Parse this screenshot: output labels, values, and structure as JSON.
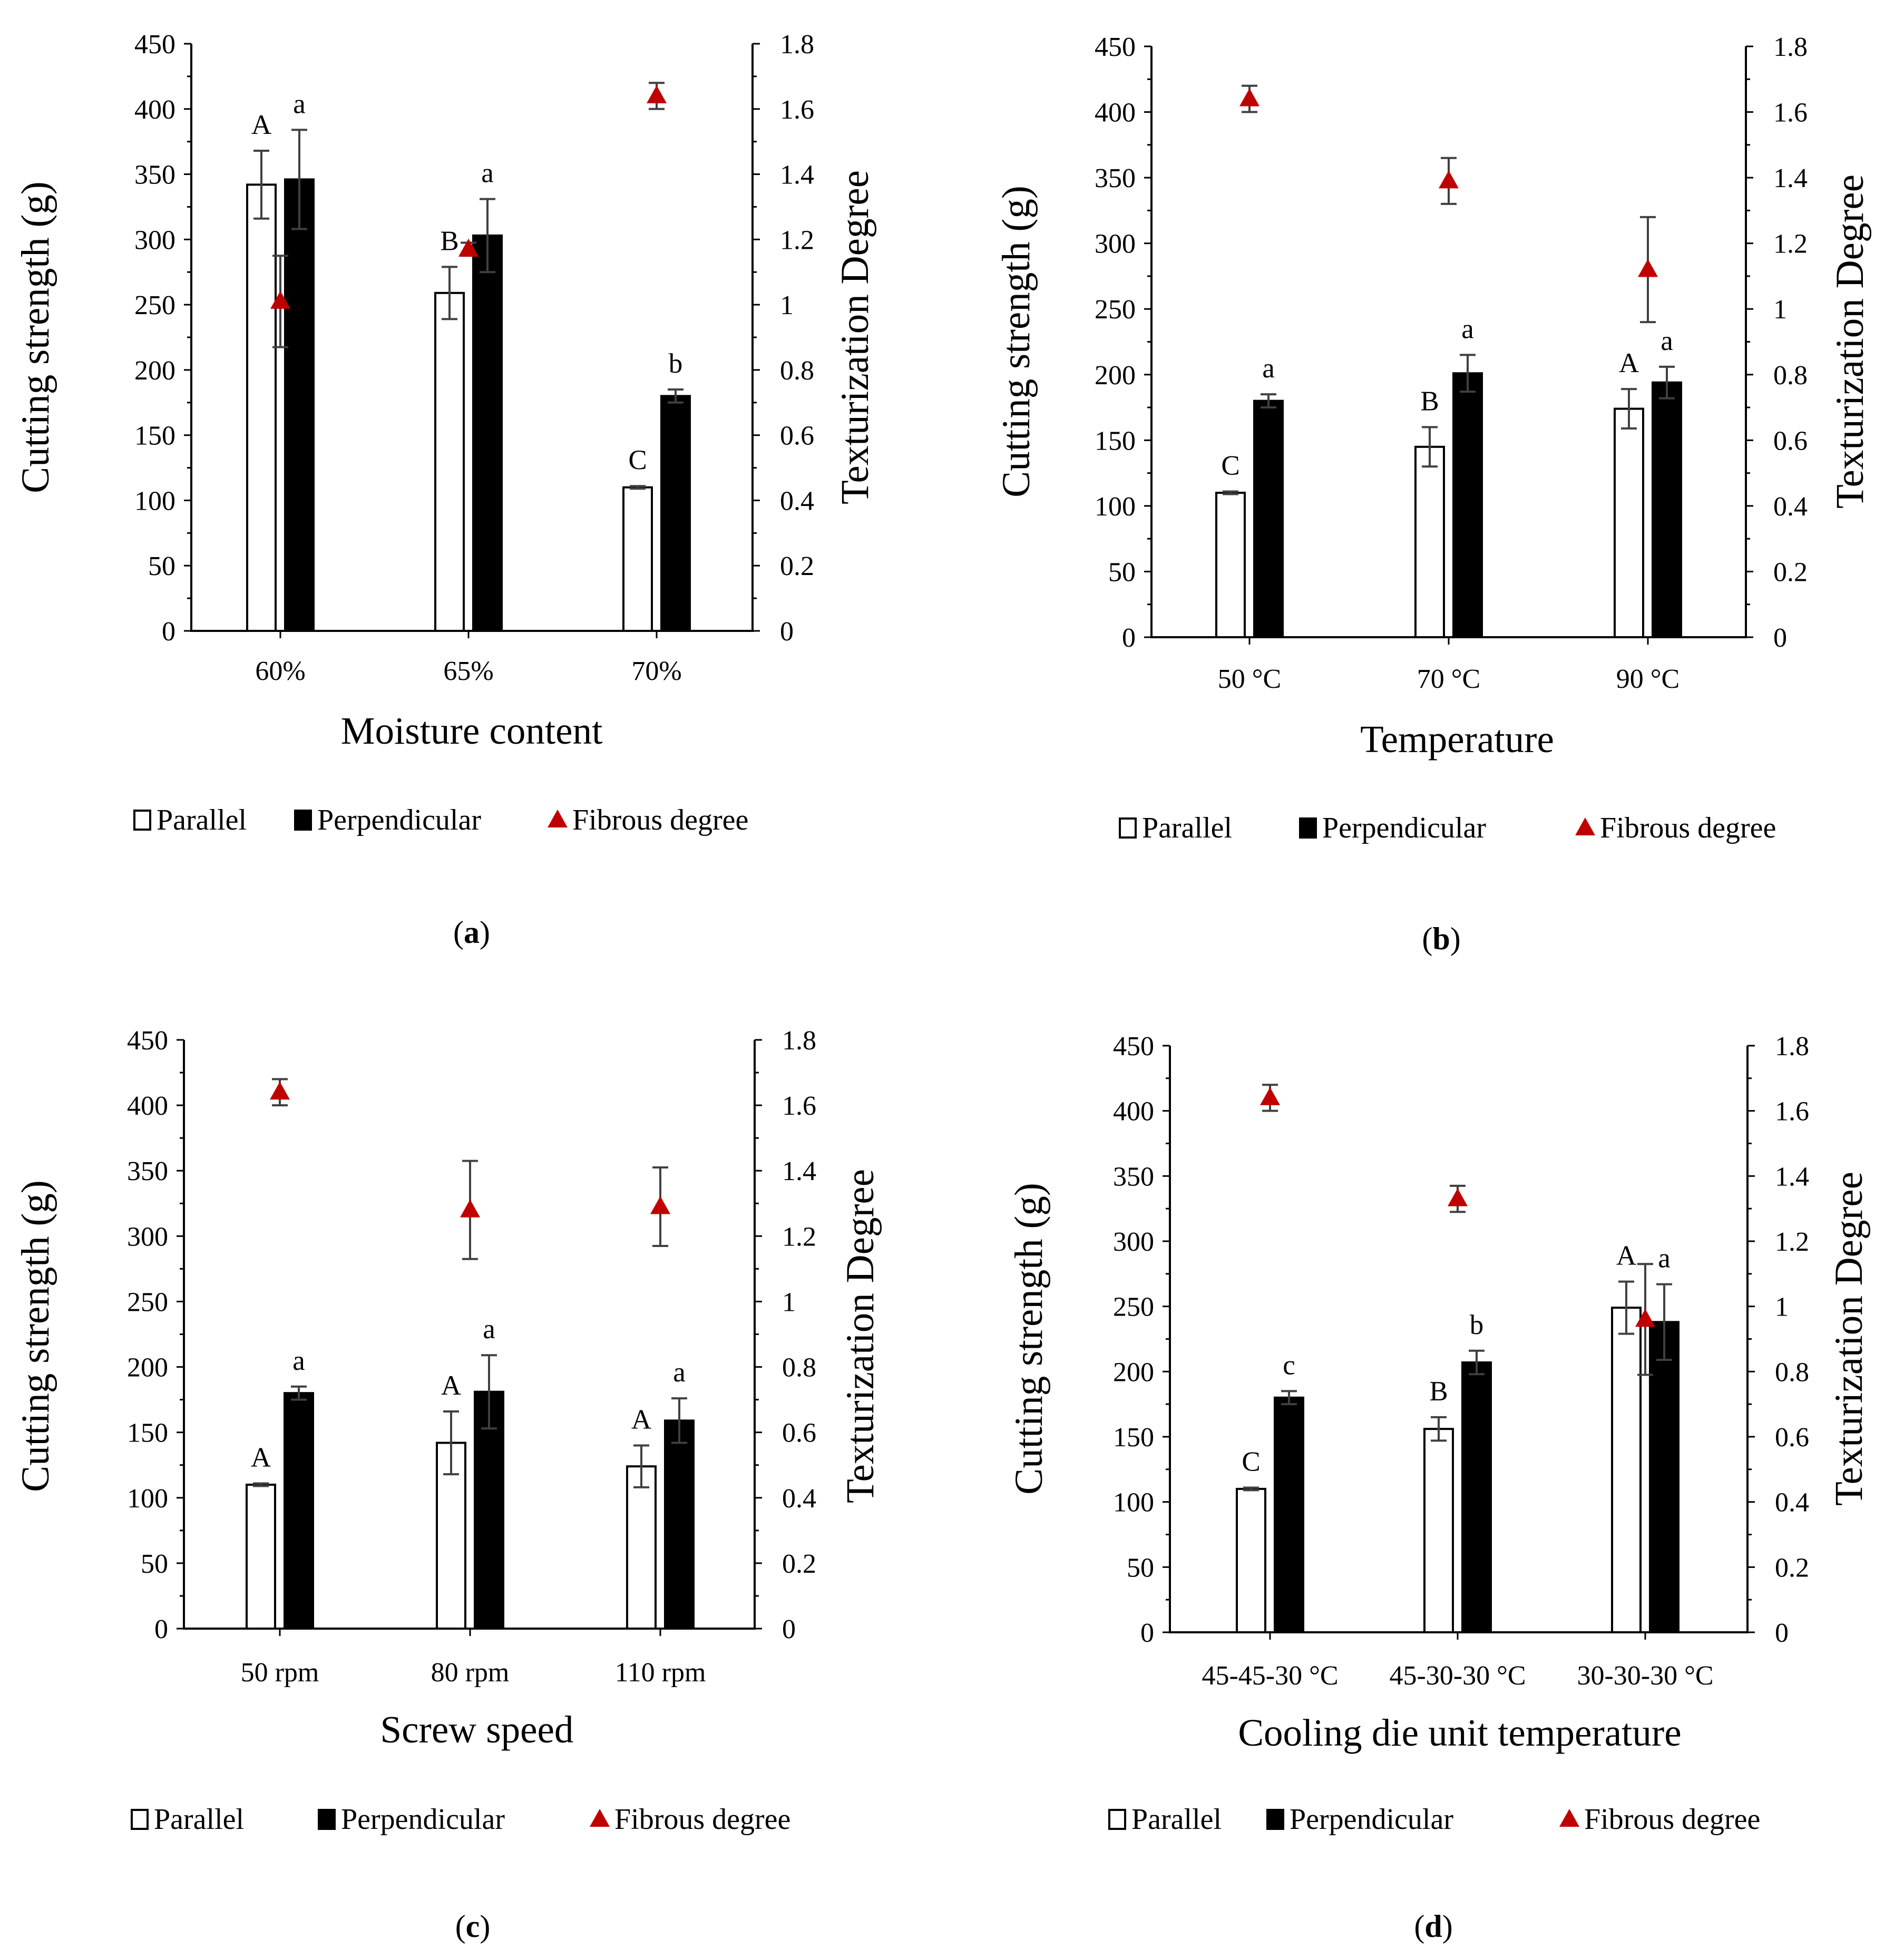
{
  "colors": {
    "parallel_fill": "#ffffff",
    "perpendicular_fill": "#000000",
    "fibrous": "#c00000",
    "axis": "#000000",
    "errorbar": "#404040"
  },
  "legend": {
    "parallel": "Parallel",
    "perpendicular": "Perpendicular",
    "fibrous": "Fibrous degree"
  },
  "chart_data": [
    {
      "panel": "(a)",
      "panel_letter": "a",
      "type": "bar",
      "xlabel": "Moisture content",
      "ylabel": "Cutting strength (g)",
      "y2label": "Texturization Degree",
      "ylim": [
        0,
        450
      ],
      "y2lim": [
        0,
        1.8
      ],
      "yticks": [
        "0",
        "50",
        "100",
        "150",
        "200",
        "250",
        "300",
        "350",
        "400",
        "450"
      ],
      "y2ticks": [
        "0",
        "0.2",
        "0.4",
        "0.6",
        "0.8",
        "1",
        "1.2",
        "1.4",
        "1.6",
        "1.8"
      ],
      "categories": [
        "60%",
        "65%",
        "70%"
      ],
      "series": [
        {
          "name": "Parallel",
          "values": [
            342,
            259,
            110
          ],
          "errors": [
            26,
            20,
            1
          ],
          "letters": [
            "A",
            "B",
            "C"
          ]
        },
        {
          "name": "Perpendicular",
          "values": [
            346,
            303,
            180
          ],
          "errors": [
            38,
            28,
            5
          ],
          "letters": [
            "a",
            "a",
            "b"
          ]
        },
        {
          "name": "Fibrous degree",
          "axis": "right",
          "values": [
            1.01,
            1.17,
            1.64
          ],
          "errors": [
            0.14,
            0.02,
            0.04
          ]
        }
      ]
    },
    {
      "panel": "(b)",
      "panel_letter": "b",
      "type": "bar",
      "xlabel": "Temperature",
      "ylabel": "Cutting strength (g)",
      "y2label": "Texturization Degree",
      "ylim": [
        0,
        450
      ],
      "y2lim": [
        0,
        1.8
      ],
      "yticks": [
        "0",
        "50",
        "100",
        "150",
        "200",
        "250",
        "300",
        "350",
        "400",
        "450"
      ],
      "y2ticks": [
        "0",
        "0.2",
        "0.4",
        "0.6",
        "0.8",
        "1",
        "1.2",
        "1.4",
        "1.6",
        "1.8"
      ],
      "categories": [
        "50 °C",
        "70 °C",
        "90 °C"
      ],
      "series": [
        {
          "name": "Parallel",
          "values": [
            110,
            145,
            174
          ],
          "errors": [
            1,
            15,
            15
          ],
          "letters": [
            "C",
            "B",
            "A"
          ]
        },
        {
          "name": "Perpendicular",
          "values": [
            180,
            201,
            194
          ],
          "errors": [
            5,
            14,
            12
          ],
          "letters": [
            "a",
            "a",
            "a"
          ]
        },
        {
          "name": "Fibrous degree",
          "axis": "right",
          "values": [
            1.64,
            1.39,
            1.12
          ],
          "errors": [
            0.04,
            0.07,
            0.16
          ]
        }
      ]
    },
    {
      "panel": "(c)",
      "panel_letter": "c",
      "type": "bar",
      "xlabel": "Screw speed",
      "ylabel": "Cutting strength (g)",
      "y2label": "Texturization Degree",
      "ylim": [
        0,
        450
      ],
      "y2lim": [
        0,
        1.8
      ],
      "yticks": [
        "0",
        "50",
        "100",
        "150",
        "200",
        "250",
        "300",
        "350",
        "400",
        "450"
      ],
      "y2ticks": [
        "0",
        "0.2",
        "0.4",
        "0.6",
        "0.8",
        "1",
        "1.2",
        "1.4",
        "1.6",
        "1.8"
      ],
      "categories": [
        "50 rpm",
        "80 rpm",
        "110 rpm"
      ],
      "series": [
        {
          "name": "Parallel",
          "values": [
            110,
            142,
            124
          ],
          "errors": [
            1,
            24,
            16
          ],
          "letters": [
            "A",
            "A",
            "A"
          ]
        },
        {
          "name": "Perpendicular",
          "values": [
            180,
            181,
            159
          ],
          "errors": [
            5,
            28,
            17
          ],
          "letters": [
            "a",
            "a",
            "a"
          ]
        },
        {
          "name": "Fibrous degree",
          "axis": "right",
          "values": [
            1.64,
            1.28,
            1.29
          ],
          "errors": [
            0.04,
            0.15,
            0.12
          ]
        }
      ]
    },
    {
      "panel": "(d)",
      "panel_letter": "d",
      "type": "bar",
      "xlabel": "Cooling die unit temperature",
      "ylabel": "Cutting strength (g)",
      "y2label": "Texturization Degree",
      "ylim": [
        0,
        450
      ],
      "y2lim": [
        0,
        1.8
      ],
      "yticks": [
        "0",
        "50",
        "100",
        "150",
        "200",
        "250",
        "300",
        "350",
        "400",
        "450"
      ],
      "y2ticks": [
        "0",
        "0.2",
        "0.4",
        "0.6",
        "0.8",
        "1",
        "1.2",
        "1.4",
        "1.6",
        "1.8"
      ],
      "categories": [
        "45-45-30 °C",
        "45-30-30 °C",
        "30-30-30 °C"
      ],
      "series": [
        {
          "name": "Parallel",
          "values": [
            110,
            156,
            249
          ],
          "errors": [
            1,
            9,
            20
          ],
          "letters": [
            "C",
            "B",
            "A"
          ]
        },
        {
          "name": "Perpendicular",
          "values": [
            180,
            207,
            238
          ],
          "errors": [
            5,
            9,
            29
          ],
          "letters": [
            "c",
            "b",
            "a"
          ]
        },
        {
          "name": "Fibrous degree",
          "axis": "right",
          "values": [
            1.64,
            1.33,
            0.96
          ],
          "errors": [
            0.04,
            0.04,
            0.17
          ]
        }
      ]
    }
  ]
}
